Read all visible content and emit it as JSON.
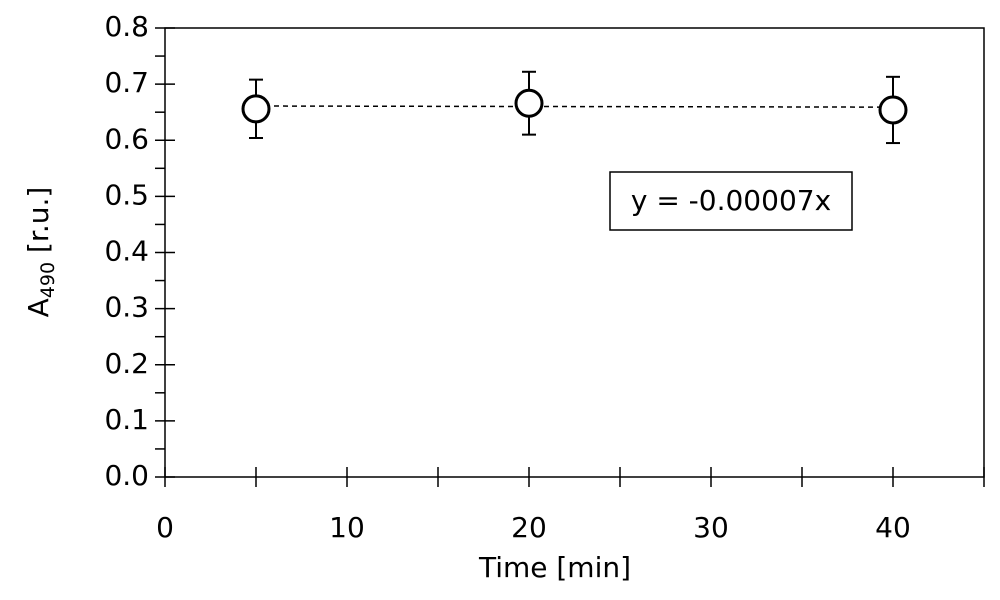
{
  "chart_data": {
    "type": "scatter",
    "xlabel": "Time [min]",
    "ylabel": {
      "main": "A",
      "sub": "490",
      "rest": " [r.u.]"
    },
    "xlim": [
      0,
      45
    ],
    "xticks": [
      0,
      10,
      20,
      30,
      40
    ],
    "xticks_minor": [
      5,
      15,
      25,
      35,
      45
    ],
    "ylim": [
      0,
      0.8
    ],
    "yticks": [
      {
        "value": 0,
        "label": "0.0"
      },
      0.1,
      0.2,
      0.3,
      0.4,
      0.5,
      0.6,
      0.7,
      0.8
    ],
    "yticks_minor": [
      0.05,
      0.15,
      0.25,
      0.35,
      0.45,
      0.55,
      0.65,
      0.75
    ],
    "series": [
      {
        "color": "#000000",
        "x": [
          5,
          20,
          40
        ],
        "values": [
          0.656,
          0.666,
          0.654
        ],
        "errors": [
          0.052,
          0.056,
          0.059
        ]
      }
    ],
    "trendline": {
      "x": [
        5,
        40
      ],
      "values": [
        0.661,
        0.659
      ]
    },
    "annotation": "y = -0.00007x"
  }
}
